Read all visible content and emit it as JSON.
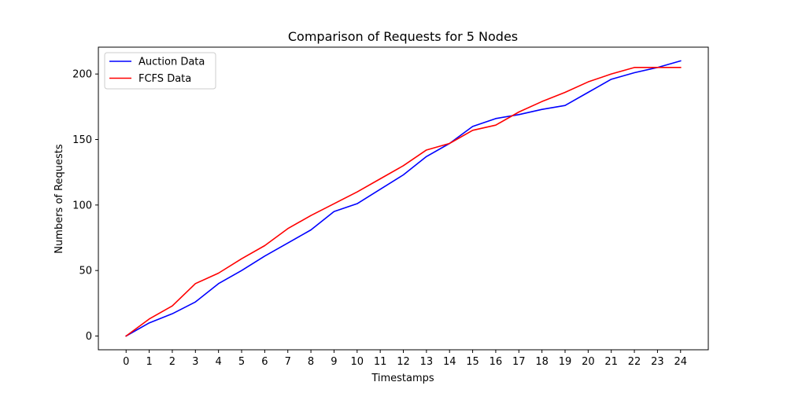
{
  "chart_data": {
    "type": "line",
    "title": "Comparison of Requests for 5 Nodes",
    "xlabel": "Timestamps",
    "ylabel": "Numbers of Requests",
    "x": [
      0,
      1,
      2,
      3,
      4,
      5,
      6,
      7,
      8,
      9,
      10,
      11,
      12,
      13,
      14,
      15,
      16,
      17,
      18,
      19,
      20,
      21,
      22,
      23,
      24
    ],
    "xlim": [
      -1.2,
      25.2
    ],
    "ylim": [
      -10.5,
      220.5
    ],
    "yticks": [
      0,
      50,
      100,
      150,
      200
    ],
    "grid": false,
    "legend_position": "top-left",
    "series": [
      {
        "name": "Auction Data",
        "color": "#0000ff",
        "values": [
          0,
          10,
          17,
          26,
          40,
          50,
          61,
          71,
          81,
          95,
          101,
          112,
          123,
          137,
          147,
          160,
          166,
          169,
          173,
          176,
          186,
          196,
          201,
          205,
          210
        ]
      },
      {
        "name": "FCFS Data",
        "color": "#ff0000",
        "values": [
          0,
          13,
          23,
          40,
          48,
          59,
          69,
          82,
          92,
          101,
          110,
          120,
          130,
          142,
          147,
          157,
          161,
          171,
          179,
          186,
          194,
          200,
          205,
          205,
          205
        ]
      }
    ]
  }
}
